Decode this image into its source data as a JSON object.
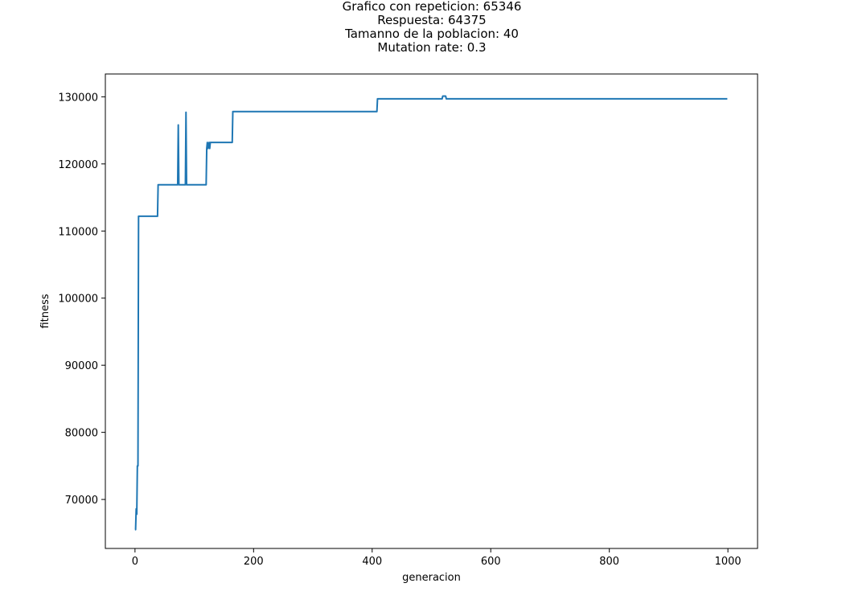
{
  "chart_data": {
    "type": "line",
    "title_lines": [
      "Grafico con repeticion: 65346",
      "Respuesta: 64375",
      "Tamanno de la poblacion: 40",
      "Mutation rate: 0.3"
    ],
    "xlabel": "generacion",
    "ylabel": "fitness",
    "xlim": [
      -50,
      1050
    ],
    "ylim": [
      62700,
      133400
    ],
    "xticks": [
      0,
      200,
      400,
      600,
      800,
      1000
    ],
    "yticks": [
      70000,
      80000,
      90000,
      100000,
      110000,
      120000,
      130000
    ],
    "grid": false,
    "line_color": "#1f77b4",
    "series": [
      {
        "points": [
          [
            0,
            65500
          ],
          [
            1,
            65500
          ],
          [
            2,
            68600
          ],
          [
            3,
            67800
          ],
          [
            4,
            75000
          ],
          [
            5,
            75000
          ],
          [
            6,
            112200
          ],
          [
            38,
            112200
          ],
          [
            39,
            116900
          ],
          [
            72,
            116900
          ],
          [
            73,
            125800
          ],
          [
            74,
            116900
          ],
          [
            85,
            116900
          ],
          [
            86,
            127700
          ],
          [
            87,
            116900
          ],
          [
            120,
            116900
          ],
          [
            121,
            122300
          ],
          [
            122,
            123200
          ],
          [
            123,
            122300
          ],
          [
            125,
            123200
          ],
          [
            126,
            122300
          ],
          [
            127,
            123200
          ],
          [
            164,
            123200
          ],
          [
            165,
            127800
          ],
          [
            408,
            127800
          ],
          [
            409,
            129700
          ],
          [
            518,
            129700
          ],
          [
            519,
            130100
          ],
          [
            524,
            130100
          ],
          [
            525,
            129700
          ],
          [
            999,
            129700
          ]
        ]
      }
    ]
  }
}
